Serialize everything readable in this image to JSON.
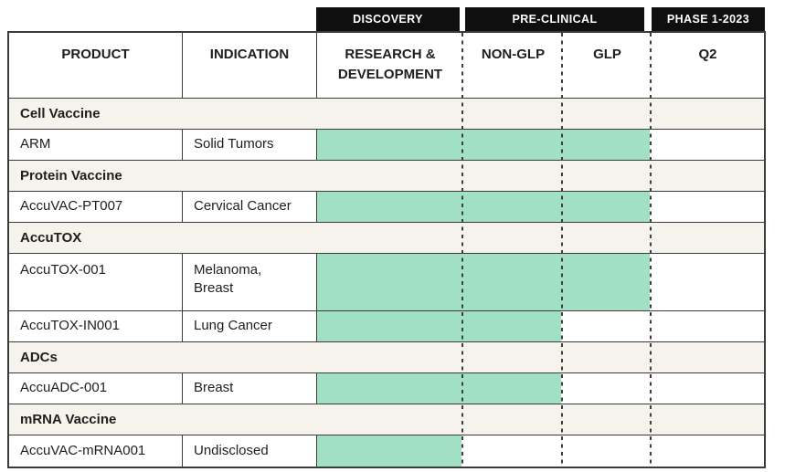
{
  "chart_data": {
    "type": "table",
    "phase_groups": [
      {
        "label": "DISCOVERY",
        "columns": [
          "RESEARCH & DEVELOPMENT"
        ]
      },
      {
        "label": "PRE-CLINICAL",
        "columns": [
          "NON-GLP",
          "GLP"
        ]
      },
      {
        "label": "PHASE 1-2023",
        "columns": [
          "Q2"
        ]
      }
    ],
    "columns": [
      "PRODUCT",
      "INDICATION",
      "RESEARCH & DEVELOPMENT",
      "NON-GLP",
      "GLP",
      "Q2"
    ],
    "sections": [
      {
        "name": "Cell Vaccine",
        "products": [
          {
            "product": "ARM",
            "indication": "Solid Tumors",
            "last_stage": "GLP"
          }
        ]
      },
      {
        "name": "Protein Vaccine",
        "products": [
          {
            "product": "AccuVAC-PT007",
            "indication": "Cervical Cancer",
            "last_stage": "GLP"
          }
        ]
      },
      {
        "name": "AccuTOX",
        "products": [
          {
            "product": "AccuTOX-001",
            "indication": "Melanoma,\nBreast",
            "last_stage": "GLP"
          },
          {
            "product": "AccuTOX-IN001",
            "indication": "Lung Cancer",
            "last_stage": "NON-GLP"
          }
        ]
      },
      {
        "name": "ADCs",
        "products": [
          {
            "product": "AccuADC-001",
            "indication": "Breast",
            "last_stage": "NON-GLP"
          }
        ]
      },
      {
        "name": "mRNA Vaccine",
        "products": [
          {
            "product": "AccuVAC-mRNA001",
            "indication": "Undisclosed",
            "last_stage": "RESEARCH & DEVELOPMENT"
          }
        ]
      }
    ],
    "colors": {
      "bar": "#a2e0c3",
      "section_bg": "#f6f3ec",
      "border": "#3b3b3b",
      "phase_box_bg": "#0f0f0f",
      "phase_box_text": "#ffffff"
    },
    "layout_hints": {
      "grid": "dashed column dividers between stage columns",
      "legend_position": "none"
    }
  }
}
